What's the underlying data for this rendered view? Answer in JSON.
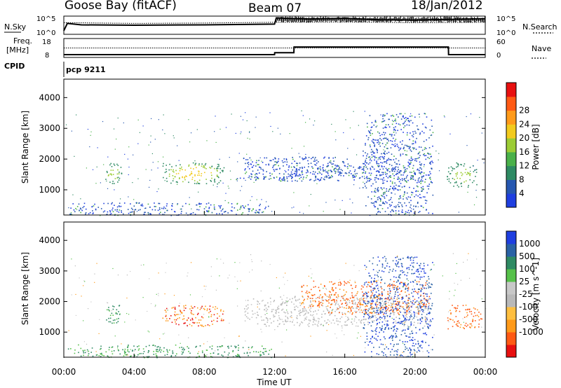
{
  "header": {
    "station": "Goose Bay (fitACF)",
    "beam": "Beam 07",
    "date": "18/Jan/2012"
  },
  "labels": {
    "nsky": "N.Sky",
    "nsearch": "N.Search",
    "freq_line1": "Freq.",
    "freq_line2": "[MHz]",
    "nave": "Nave",
    "cpid": "CPID",
    "cpid_value": "pcp 9211",
    "ylabel": "Slant Range [km]",
    "xlabel": "Time UT"
  },
  "ticks": {
    "time": [
      "00:00",
      "04:00",
      "08:00",
      "12:00",
      "16:00",
      "20:00",
      "00:00"
    ],
    "range": [
      "1000",
      "2000",
      "3000",
      "4000"
    ],
    "nsky_left": [
      "10^5",
      "10^0"
    ],
    "nsearch_right": [
      "10^5",
      "10^0"
    ],
    "freq_left": [
      "18",
      "8"
    ],
    "nave_right": [
      "60",
      "0"
    ]
  },
  "colors": {
    "power": [
      "#1f3fe0",
      "#2657b0",
      "#2e8a63",
      "#4ab14a",
      "#9ccc35",
      "#f2ca1e",
      "#ff9a1a",
      "#ff5a14",
      "#e81010"
    ],
    "velocity": [
      "#e81010",
      "#ff5a14",
      "#ff9a1a",
      "#ffbf40",
      "#b9b9b9",
      "#c8c8c8",
      "#56c14a",
      "#2e8a63",
      "#2a62a5",
      "#1f3fe0"
    ]
  },
  "chart_data": [
    {
      "type": "line",
      "title": "N.Sky / N.Search",
      "x_unit": "hours UT",
      "xlim": [
        0,
        24
      ],
      "ylim_log10": [
        0,
        5
      ],
      "series": [
        {
          "name": "N.Sky",
          "x": [
            0,
            0.2,
            1,
            4,
            8,
            12,
            12.1,
            14,
            16,
            18,
            20,
            22,
            24
          ],
          "y": [
            1.0,
            3.0,
            2.6,
            2.5,
            2.6,
            2.8,
            4.5,
            4.2,
            4.4,
            4.0,
            3.9,
            4.1,
            4.3
          ]
        },
        {
          "name": "N.Search",
          "x": [
            0,
            4,
            8,
            12,
            16,
            20,
            24
          ],
          "y": [
            3.2,
            3.0,
            3.1,
            3.3,
            3.4,
            3.2,
            3.3
          ]
        }
      ]
    },
    {
      "type": "line",
      "title": "Freq. / Nave",
      "x_unit": "hours UT",
      "xlim": [
        0,
        24
      ],
      "ylim_freq": [
        8,
        18
      ],
      "ylim_nave": [
        0,
        60
      ],
      "series": [
        {
          "name": "Freq.",
          "x": [
            0,
            12,
            12.01,
            13.1,
            13.11,
            21.9,
            21.91,
            24
          ],
          "y": [
            9.5,
            9.5,
            10.5,
            10.5,
            13.5,
            13.5,
            9.5,
            9.5
          ]
        },
        {
          "name": "Nave",
          "x": [
            0,
            24
          ],
          "y": [
            30,
            30
          ]
        }
      ]
    },
    {
      "type": "heatmap",
      "title": "Power [dB]",
      "xlabel": "Time UT",
      "ylabel": "Slant Range [km]",
      "xlim": [
        0,
        24
      ],
      "ylim": [
        180,
        4600
      ],
      "colorbar_ticks": [
        4,
        8,
        12,
        16,
        20,
        24,
        28
      ],
      "colorbar_label": "Power [dB]",
      "regions": [
        {
          "t": [
            2.3,
            3.3
          ],
          "r": [
            1200,
            1900
          ],
          "level": "mid"
        },
        {
          "t": [
            5.6,
            9.1
          ],
          "r": [
            1200,
            1900
          ],
          "level": "high"
        },
        {
          "t": [
            9.8,
            11.9
          ],
          "r": [
            1350,
            1450
          ],
          "level": "low"
        },
        {
          "t": [
            10.2,
            16.5
          ],
          "r": [
            1300,
            2100
          ],
          "level": "low"
        },
        {
          "t": [
            12.5,
            20.5
          ],
          "r": [
            1300,
            1800
          ],
          "level": "low"
        },
        {
          "t": [
            17.0,
            21.0
          ],
          "r": [
            180,
            3500
          ],
          "level": "low"
        },
        {
          "t": [
            21.8,
            23.5
          ],
          "r": [
            1100,
            1900
          ],
          "level": "mid"
        },
        {
          "t": [
            0.2,
            11.8
          ],
          "r": [
            180,
            600
          ],
          "level": "low"
        }
      ]
    },
    {
      "type": "heatmap",
      "title": "Velocity [m s^-1]",
      "xlabel": "Time UT",
      "ylabel": "Slant Range [km]",
      "xlim": [
        0,
        24
      ],
      "ylim": [
        180,
        4600
      ],
      "colorbar_ticks": [
        1000,
        500,
        100,
        25,
        -25,
        -100,
        -500,
        -1000
      ],
      "colorbar_label": "Velocity [m s^-1]",
      "regions": [
        {
          "t": [
            2.3,
            3.3
          ],
          "r": [
            1300,
            1900
          ],
          "velocity": 100
        },
        {
          "t": [
            5.6,
            9.1
          ],
          "r": [
            1200,
            1900
          ],
          "velocity": -100
        },
        {
          "t": [
            10.2,
            20.8
          ],
          "r": [
            1200,
            2200
          ],
          "velocity": 0
        },
        {
          "t": [
            13.5,
            20.8
          ],
          "r": [
            1600,
            2700
          ],
          "velocity": -200
        },
        {
          "t": [
            17.0,
            21.0
          ],
          "r": [
            180,
            3500
          ],
          "velocity": 300
        },
        {
          "t": [
            21.8,
            23.8
          ],
          "r": [
            1100,
            1900
          ],
          "velocity": -300
        },
        {
          "t": [
            0.2,
            11.8
          ],
          "r": [
            180,
            600
          ],
          "velocity": 50
        }
      ]
    }
  ]
}
